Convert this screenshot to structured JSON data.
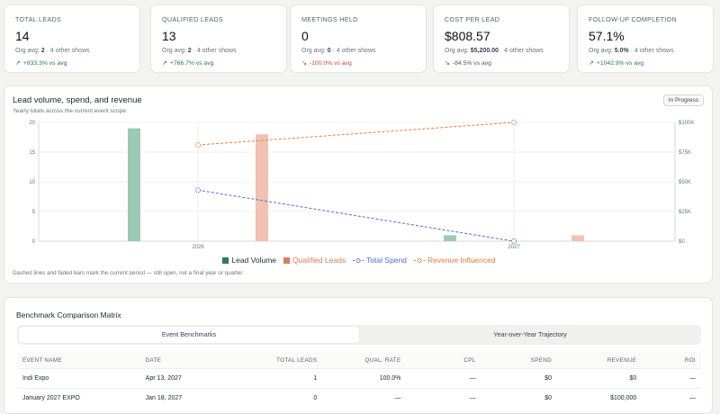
{
  "kpis": [
    {
      "label": "TOTAL LEADS",
      "value": "14",
      "avg_prefix": "Org avg: ",
      "avg_value": "2",
      "avg_suffix": " · 4 other shows",
      "delta": "+833.3% vs avg",
      "delta_dir": "up"
    },
    {
      "label": "QUALIFIED LEADS",
      "value": "13",
      "avg_prefix": "Org avg: ",
      "avg_value": "2",
      "avg_suffix": " · 4 other shows",
      "delta": "+766.7% vs avg",
      "delta_dir": "up"
    },
    {
      "label": "MEETINGS HELD",
      "value": "0",
      "avg_prefix": "Org avg: ",
      "avg_value": "0",
      "avg_suffix": " · 4 other shows",
      "delta": "-100.0% vs avg",
      "delta_dir": "down-bad"
    },
    {
      "label": "COST PER LEAD",
      "value": "$808.57",
      "avg_prefix": "Org avg: ",
      "avg_value": "$5,200.00",
      "avg_suffix": " · 4 other shows",
      "delta": "-84.5% vs avg",
      "delta_dir": "down-good"
    },
    {
      "label": "FOLLOW-UP COMPLETION",
      "value": "57.1%",
      "avg_prefix": "Org avg: ",
      "avg_value": "5.0%",
      "avg_suffix": " · 4 other shows",
      "delta": "+1042.9% vs avg",
      "delta_dir": "up"
    }
  ],
  "chart": {
    "title": "Lead volume, spend, and revenue",
    "subtitle": "Yearly totals across the current event scope.",
    "status": "In Progress",
    "note": "Dashed lines and faded bars mark the current period — still open, not a final year or quarter."
  },
  "chart_data": {
    "type": "bar",
    "categories": [
      "2026",
      "2027"
    ],
    "series": [
      {
        "name": "Lead Volume",
        "type": "bar",
        "axis": "left",
        "values": [
          19,
          1
        ],
        "color": "#9cc9b3"
      },
      {
        "name": "Qualified Leads",
        "type": "bar",
        "axis": "left",
        "values": [
          18,
          1
        ],
        "color": "#f1c2b3"
      },
      {
        "name": "Total Spend",
        "type": "line",
        "axis": "right",
        "values": [
          43000,
          0
        ],
        "color": "#4a6fd8"
      },
      {
        "name": "Revenue Influenced",
        "type": "line",
        "axis": "right",
        "values": [
          81000,
          100000
        ],
        "color": "#e67d3f"
      }
    ],
    "y_left": {
      "ticks": [
        0,
        5,
        10,
        15,
        20
      ],
      "ylim": [
        0,
        20
      ]
    },
    "y_right": {
      "ticks": [
        "$0",
        "$25K",
        "$50K",
        "$75K",
        "$100K"
      ],
      "ylim": [
        0,
        100000
      ]
    },
    "legend_position": "bottom",
    "legend_swatch_colors": {
      "Lead Volume": "#2f7a55",
      "Qualified Leads": "#e07a5f"
    },
    "legend_text_colors": {
      "Lead Volume": "#1f2937",
      "Qualified Leads": "#e0795c",
      "Total Spend": "#4a6fd8",
      "Revenue Influenced": "#e67d3f"
    },
    "grid": true
  },
  "matrix": {
    "title": "Benchmark Comparison Matrix",
    "tabs": [
      "Event Benchmarks",
      "Year-over-Year Trajectory"
    ],
    "active_tab": 0,
    "columns": [
      "EVENT NAME",
      "DATE",
      "TOTAL LEADS",
      "QUAL. RATE",
      "CPL",
      "SPEND",
      "REVENUE",
      "ROI"
    ],
    "rows": [
      [
        "Indi Expo",
        "Apr 13, 2027",
        "1",
        "100.0%",
        "—",
        "$0",
        "$0",
        "—"
      ],
      [
        "January 2027 EXPO",
        "Jan 18, 2027",
        "0",
        "—",
        "—",
        "$0",
        "$100,000",
        "—"
      ]
    ]
  }
}
